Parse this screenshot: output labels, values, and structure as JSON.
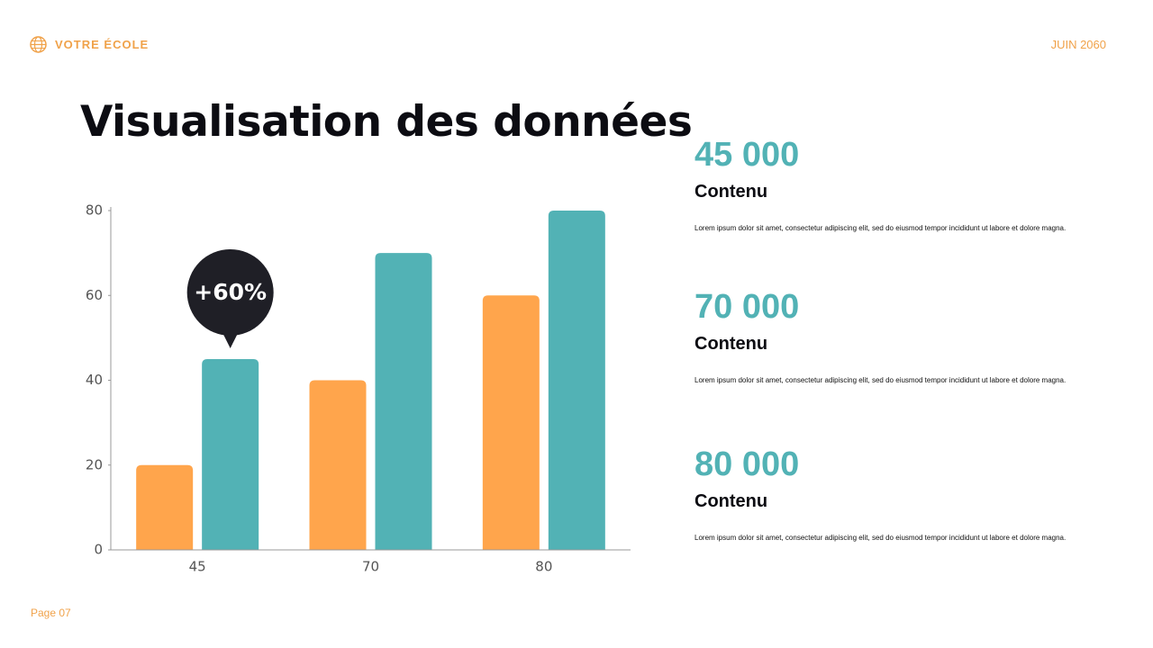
{
  "header": {
    "school": "VOTRE ÉCOLE",
    "date": "JUIN 2060"
  },
  "title": "Visualisation des données",
  "chart_data": {
    "type": "bar",
    "categories": [
      "45",
      "70",
      "80"
    ],
    "series": [
      {
        "color": "#ffa54c",
        "values": [
          20,
          40,
          60
        ]
      },
      {
        "color": "#52b2b5",
        "values": [
          45,
          70,
          80
        ]
      }
    ],
    "ylim": [
      0,
      80
    ],
    "yticks": [
      0,
      20,
      40,
      60,
      80
    ],
    "annotation": {
      "text": "+60%",
      "color": "#1f1f26"
    }
  },
  "stats": [
    {
      "value": "45 000",
      "label": "Contenu",
      "text": "Lorem ipsum dolor sit amet, consectetur adipiscing elit, sed do eiusmod tempor incididunt ut labore et dolore magna."
    },
    {
      "value": "70 000",
      "label": "Contenu",
      "text": "Lorem ipsum dolor sit amet, consectetur adipiscing elit, sed do eiusmod tempor incididunt ut labore et dolore magna."
    },
    {
      "value": "80 000",
      "label": "Contenu",
      "text": "Lorem ipsum dolor sit amet, consectetur adipiscing elit, sed do eiusmod tempor incididunt ut labore et dolore magna."
    }
  ],
  "footer": {
    "page": "Page 07"
  }
}
